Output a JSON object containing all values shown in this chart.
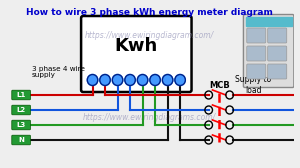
{
  "title": "How to wire 3 phase kWh energy meter diagram",
  "title_color": "#0000cc",
  "title_fontsize": 6.5,
  "watermark1": "https://www.ewiringdiagram.com/",
  "watermark2": "https://www.ewiringdiagrams.com/",
  "watermark_color": "#9999bb",
  "kwh_label": "Kwh",
  "mcb_label": "MCB",
  "supply_label": "Supply to\nload",
  "phase_label": "3 phase 4 wire\nsupply",
  "wire_labels": [
    "L1",
    "L2",
    "L3",
    "N"
  ],
  "wire_colors": [
    "#cc0000",
    "#1155dd",
    "#229922",
    "#111111"
  ],
  "bg_color": "#eeeeee",
  "meter_bg": "#ffffff",
  "terminal_color": "#4499ff",
  "label_bg": "#229933",
  "mcb_body_color": "#dddddd",
  "mcb_top_color": "#55bbcc",
  "mcb_cell_color": "#aabbcc"
}
